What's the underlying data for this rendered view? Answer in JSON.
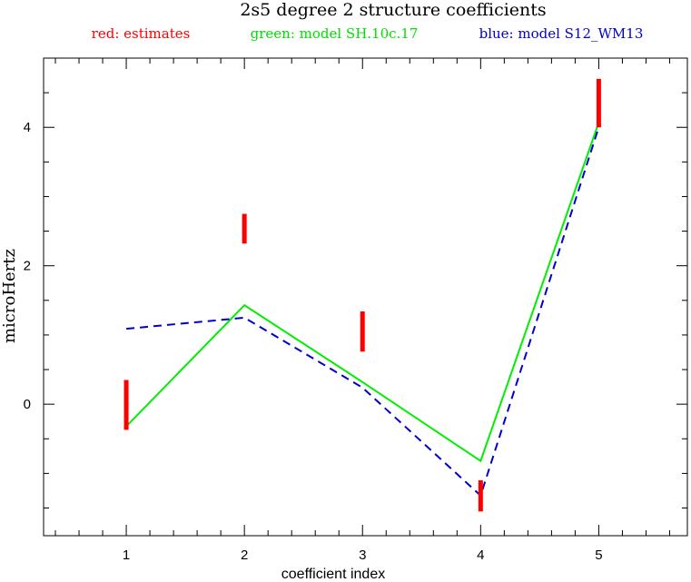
{
  "chart_data": {
    "type": "line",
    "title": "2s5 degree 2 structure coefficients",
    "xlabel": "coefficient index",
    "ylabel": "microHertz",
    "xlim": [
      0.3,
      5.75
    ],
    "ylim": [
      -1.9,
      5.0
    ],
    "x_ticks": [
      1,
      2,
      3,
      4,
      5
    ],
    "x_tick_labels": [
      "1",
      "2",
      "3",
      "4",
      "5"
    ],
    "y_ticks": [
      0,
      2,
      4
    ],
    "y_tick_labels": [
      "0",
      "2",
      "4"
    ],
    "grid": false,
    "legend": [
      {
        "text": "red: estimates",
        "color": "#ff0000"
      },
      {
        "text": "green: model SH.10c.17",
        "color": "#00e000"
      },
      {
        "text": "blue: model S12_WM13",
        "color": "#0000cc"
      }
    ],
    "estimates": {
      "color": "#ff0000",
      "x": [
        1,
        2,
        3,
        4,
        5
      ],
      "low": [
        -0.37,
        2.32,
        0.76,
        -1.55,
        4.0
      ],
      "high": [
        0.35,
        2.75,
        1.34,
        -1.1,
        4.7
      ]
    },
    "series": [
      {
        "color": "#00ee00",
        "style": "solid",
        "x": [
          1,
          2,
          3,
          4,
          5
        ],
        "values": [
          -0.32,
          1.43,
          0.32,
          -0.82,
          4.07
        ]
      },
      {
        "color": "#0000cc",
        "style": "dashed",
        "x": [
          1,
          2,
          3,
          4,
          5
        ],
        "values": [
          1.09,
          1.25,
          0.24,
          -1.32,
          4.0
        ]
      }
    ]
  }
}
